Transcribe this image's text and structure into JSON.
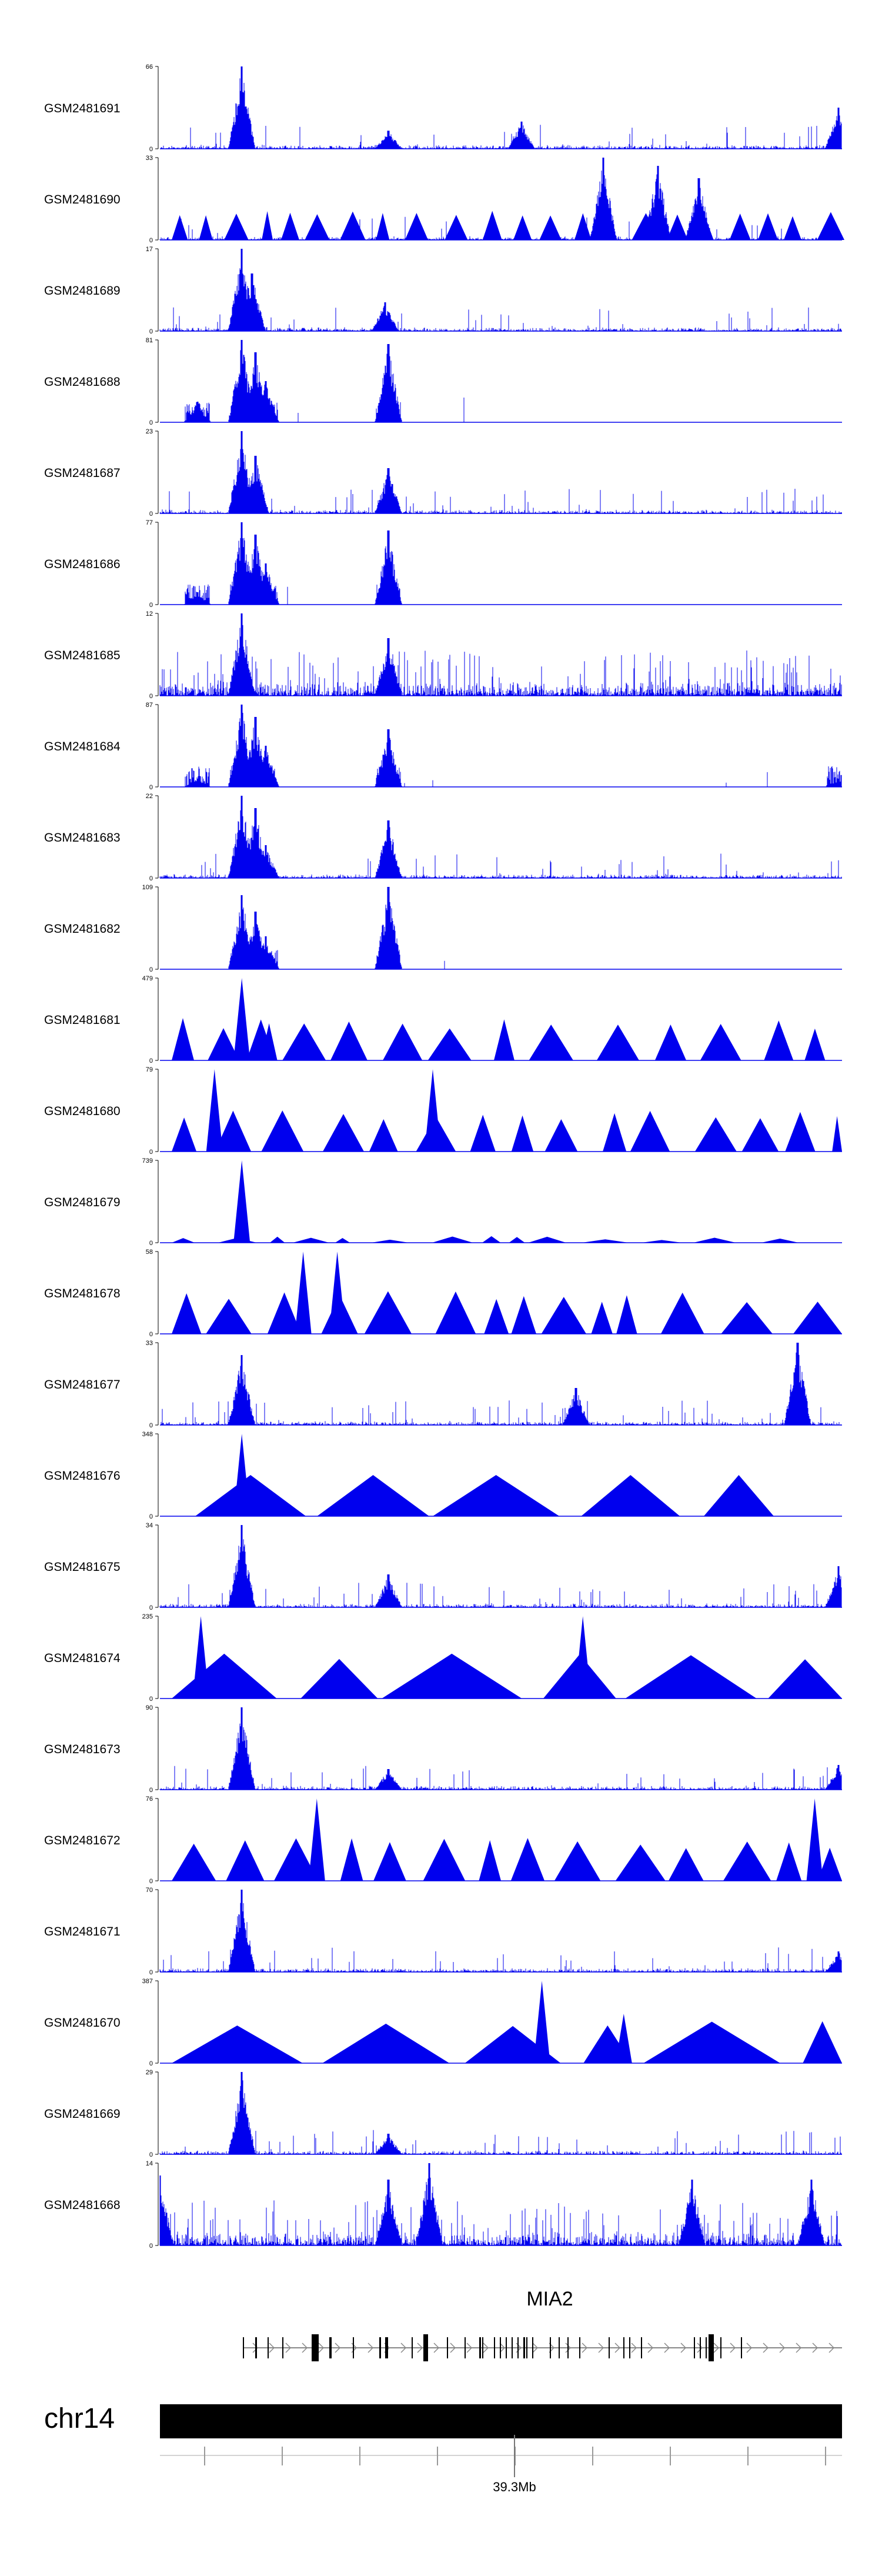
{
  "colors": {
    "signal": "#0000ee",
    "axis": "#000000",
    "chromosome": "#000000",
    "gene": "#000000",
    "intron_arrow": "#888888"
  },
  "tracks": [
    {
      "id": "GSM2481691",
      "ymax": "66",
      "ymin": "0",
      "style": "dense",
      "peaks": [
        [
          0.12,
          1.0
        ],
        [
          0.335,
          0.22
        ],
        [
          0.53,
          0.33
        ],
        [
          0.995,
          0.5
        ]
      ]
    },
    {
      "id": "GSM2481690",
      "ymax": "33",
      "ymin": "0",
      "style": "dense-tri",
      "peaks": [
        [
          0.65,
          1.0
        ],
        [
          0.73,
          0.9
        ],
        [
          0.79,
          0.75
        ]
      ]
    },
    {
      "id": "GSM2481689",
      "ymax": "17",
      "ymin": "0",
      "style": "dense",
      "peaks": [
        [
          0.12,
          1.0
        ],
        [
          0.135,
          0.7
        ],
        [
          0.33,
          0.35
        ]
      ]
    },
    {
      "id": "GSM2481688",
      "ymax": "81",
      "ymin": "0",
      "style": "sparse",
      "peaks": [
        [
          0.055,
          0.25
        ],
        [
          0.12,
          1.0
        ],
        [
          0.14,
          0.85
        ],
        [
          0.155,
          0.5
        ],
        [
          0.335,
          0.95
        ]
      ]
    },
    {
      "id": "GSM2481687",
      "ymax": "23",
      "ymin": "0",
      "style": "dense",
      "peaks": [
        [
          0.12,
          1.0
        ],
        [
          0.14,
          0.7
        ],
        [
          0.335,
          0.55
        ]
      ]
    },
    {
      "id": "GSM2481686",
      "ymax": "77",
      "ymin": "0",
      "style": "sparse",
      "peaks": [
        [
          0.055,
          0.15
        ],
        [
          0.12,
          1.0
        ],
        [
          0.14,
          0.85
        ],
        [
          0.155,
          0.5
        ],
        [
          0.335,
          0.9
        ]
      ]
    },
    {
      "id": "GSM2481685",
      "ymax": "12",
      "ymin": "0",
      "style": "dense-high",
      "peaks": [
        [
          0.12,
          1.0
        ],
        [
          0.335,
          0.7
        ]
      ]
    },
    {
      "id": "GSM2481684",
      "ymax": "87",
      "ymin": "0",
      "style": "sparse",
      "peaks": [
        [
          0.055,
          0.1
        ],
        [
          0.12,
          1.0
        ],
        [
          0.14,
          0.85
        ],
        [
          0.155,
          0.5
        ],
        [
          0.335,
          0.7
        ],
        [
          0.995,
          0.1
        ]
      ]
    },
    {
      "id": "GSM2481683",
      "ymax": "22",
      "ymin": "0",
      "style": "dense",
      "peaks": [
        [
          0.12,
          1.0
        ],
        [
          0.14,
          0.85
        ],
        [
          0.155,
          0.4
        ],
        [
          0.335,
          0.7
        ]
      ]
    },
    {
      "id": "GSM2481682",
      "ymax": "109",
      "ymin": "0",
      "style": "sparse",
      "peaks": [
        [
          0.12,
          0.9
        ],
        [
          0.14,
          0.7
        ],
        [
          0.155,
          0.4
        ],
        [
          0.335,
          1.0
        ]
      ]
    },
    {
      "id": "GSM2481681",
      "ymax": "479",
      "ymin": "0",
      "style": "tri",
      "peaks": [
        [
          0.12,
          1.0
        ],
        [
          0.16,
          0.45
        ]
      ]
    },
    {
      "id": "GSM2481680",
      "ymax": "79",
      "ymin": "0",
      "style": "tri",
      "peaks": [
        [
          0.08,
          1.0
        ],
        [
          0.4,
          1.0
        ]
      ]
    },
    {
      "id": "GSM2481679",
      "ymax": "739",
      "ymin": "0",
      "style": "tri-low",
      "peaks": [
        [
          0.12,
          1.0
        ]
      ]
    },
    {
      "id": "GSM2481678",
      "ymax": "58",
      "ymin": "0",
      "style": "tri",
      "peaks": [
        [
          0.21,
          1.0
        ],
        [
          0.26,
          1.0
        ]
      ]
    },
    {
      "id": "GSM2481677",
      "ymax": "33",
      "ymin": "0",
      "style": "dense",
      "peaks": [
        [
          0.12,
          0.85
        ],
        [
          0.61,
          0.45
        ],
        [
          0.935,
          1.0
        ]
      ]
    },
    {
      "id": "GSM2481676",
      "ymax": "348",
      "ymin": "0",
      "style": "tri-wide",
      "peaks": [
        [
          0.12,
          1.0
        ]
      ]
    },
    {
      "id": "GSM2481675",
      "ymax": "34",
      "ymin": "0",
      "style": "dense",
      "peaks": [
        [
          0.12,
          1.0
        ],
        [
          0.335,
          0.4
        ],
        [
          0.995,
          0.5
        ]
      ]
    },
    {
      "id": "GSM2481674",
      "ymax": "235",
      "ymin": "0",
      "style": "tri-big",
      "peaks": [
        [
          0.06,
          1.0
        ],
        [
          0.62,
          1.0
        ]
      ]
    },
    {
      "id": "GSM2481673",
      "ymax": "90",
      "ymin": "0",
      "style": "dense",
      "peaks": [
        [
          0.12,
          1.0
        ],
        [
          0.335,
          0.25
        ],
        [
          0.995,
          0.3
        ]
      ]
    },
    {
      "id": "GSM2481672",
      "ymax": "76",
      "ymin": "0",
      "style": "tri",
      "peaks": [
        [
          0.23,
          1.0
        ],
        [
          0.96,
          1.0
        ]
      ]
    },
    {
      "id": "GSM2481671",
      "ymax": "70",
      "ymin": "0",
      "style": "dense",
      "peaks": [
        [
          0.12,
          1.0
        ],
        [
          0.995,
          0.25
        ]
      ]
    },
    {
      "id": "GSM2481670",
      "ymax": "387",
      "ymin": "0",
      "style": "tri-big",
      "peaks": [
        [
          0.56,
          1.0
        ],
        [
          0.68,
          0.6
        ]
      ]
    },
    {
      "id": "GSM2481669",
      "ymax": "29",
      "ymin": "0",
      "style": "dense",
      "peaks": [
        [
          0.12,
          1.0
        ],
        [
          0.335,
          0.25
        ]
      ]
    },
    {
      "id": "GSM2481668",
      "ymax": "14",
      "ymin": "0",
      "style": "dense-high",
      "peaks": [
        [
          0.0,
          0.85
        ],
        [
          0.335,
          0.8
        ],
        [
          0.395,
          1.0
        ],
        [
          0.78,
          0.8
        ],
        [
          0.955,
          0.8
        ]
      ]
    }
  ],
  "gene": {
    "name": "MIA2"
  },
  "chromosome": {
    "name": "chr14",
    "coordinate_label": "39.3Mb"
  }
}
